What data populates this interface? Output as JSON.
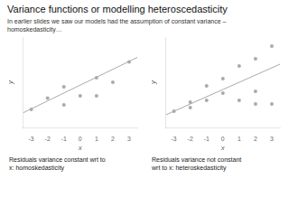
{
  "chart_data": [
    {
      "type": "scatter",
      "title": "Variance functions or modelling heteroscedasticity",
      "subtitle": "In earlier slides we saw our models had the assumption of constant variance –\nhomoskedasticity…",
      "xlabel": "x",
      "ylabel": "y",
      "xlim": [
        -3.5,
        3.5
      ],
      "xticks": [
        -3,
        -2,
        -1,
        0,
        1,
        2,
        3
      ],
      "ylim": [
        -0.5,
        3.5
      ],
      "tick_labels": "x",
      "grid": false,
      "annotations": [
        "Residuals variance constant wrt to\nx: homoskedasticity"
      ],
      "series": [
        {
          "type": "scatter",
          "color": "#aaaaaa",
          "x": [
            -3,
            -2,
            -1,
            -1,
            0,
            1,
            1,
            2,
            3
          ],
          "values": [
            0.3,
            0.8,
            1.3,
            0.5,
            0.9,
            1.7,
            0.9,
            1.5,
            2.4
          ]
        },
        {
          "type": "line",
          "color": "#aaaaaa",
          "x": [
            -3.5,
            3.5
          ],
          "values": [
            0.15,
            2.6
          ]
        }
      ]
    },
    {
      "type": "scatter",
      "xlabel": "x",
      "ylabel": "y",
      "xlim": [
        -3.5,
        3.5
      ],
      "xticks": [
        -3,
        -2,
        -1,
        0,
        1,
        2,
        3
      ],
      "ylim": [
        -0.5,
        4.5
      ],
      "tick_labels": "x",
      "grid": false,
      "annotations": [
        "Residuals variance not constant\nwrt to x: heteroskedasticity"
      ],
      "series": [
        {
          "type": "scatter",
          "color": "#aaaaaa",
          "x": [
            -3,
            -2,
            -2,
            -1,
            0,
            1,
            2,
            2,
            3
          ],
          "values": [
            0.4,
            0.6,
            0.9,
            1.0,
            1.4,
            1.0,
            1.5,
            0.8,
            0.8
          ]
        },
        {
          "type": "scatter",
          "color": "#aaaaaa",
          "x": [
            -1,
            0,
            1,
            2,
            3
          ],
          "values": [
            1.8,
            2.2,
            2.9,
            3.3,
            4.0
          ]
        },
        {
          "type": "line",
          "color": "#aaaaaa",
          "x": [
            -3.5,
            3.5
          ],
          "values": [
            0.2,
            3.0
          ]
        }
      ]
    }
  ]
}
